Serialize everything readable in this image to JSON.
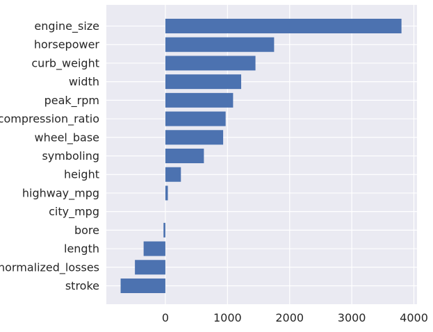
{
  "chart_data": {
    "type": "bar",
    "orientation": "horizontal",
    "categories": [
      "engine_size",
      "horsepower",
      "curb_weight",
      "width",
      "peak_rpm",
      "compression_ratio",
      "wheel_base",
      "symboling",
      "height",
      "highway_mpg",
      "city_mpg",
      "bore",
      "length",
      "normalized_losses",
      "stroke"
    ],
    "values": [
      3800,
      1750,
      1450,
      1220,
      1090,
      970,
      930,
      620,
      250,
      40,
      0,
      -30,
      -350,
      -490,
      -720
    ],
    "xlim": [
      -950,
      4050
    ],
    "xticks": [
      0,
      1000,
      2000,
      3000,
      4000
    ],
    "title": "",
    "xlabel": "",
    "ylabel": "",
    "grid": true,
    "colors": {
      "bar": "#4c72b0",
      "plot_background": "#eaeaf2",
      "grid": "#ffffff"
    }
  }
}
